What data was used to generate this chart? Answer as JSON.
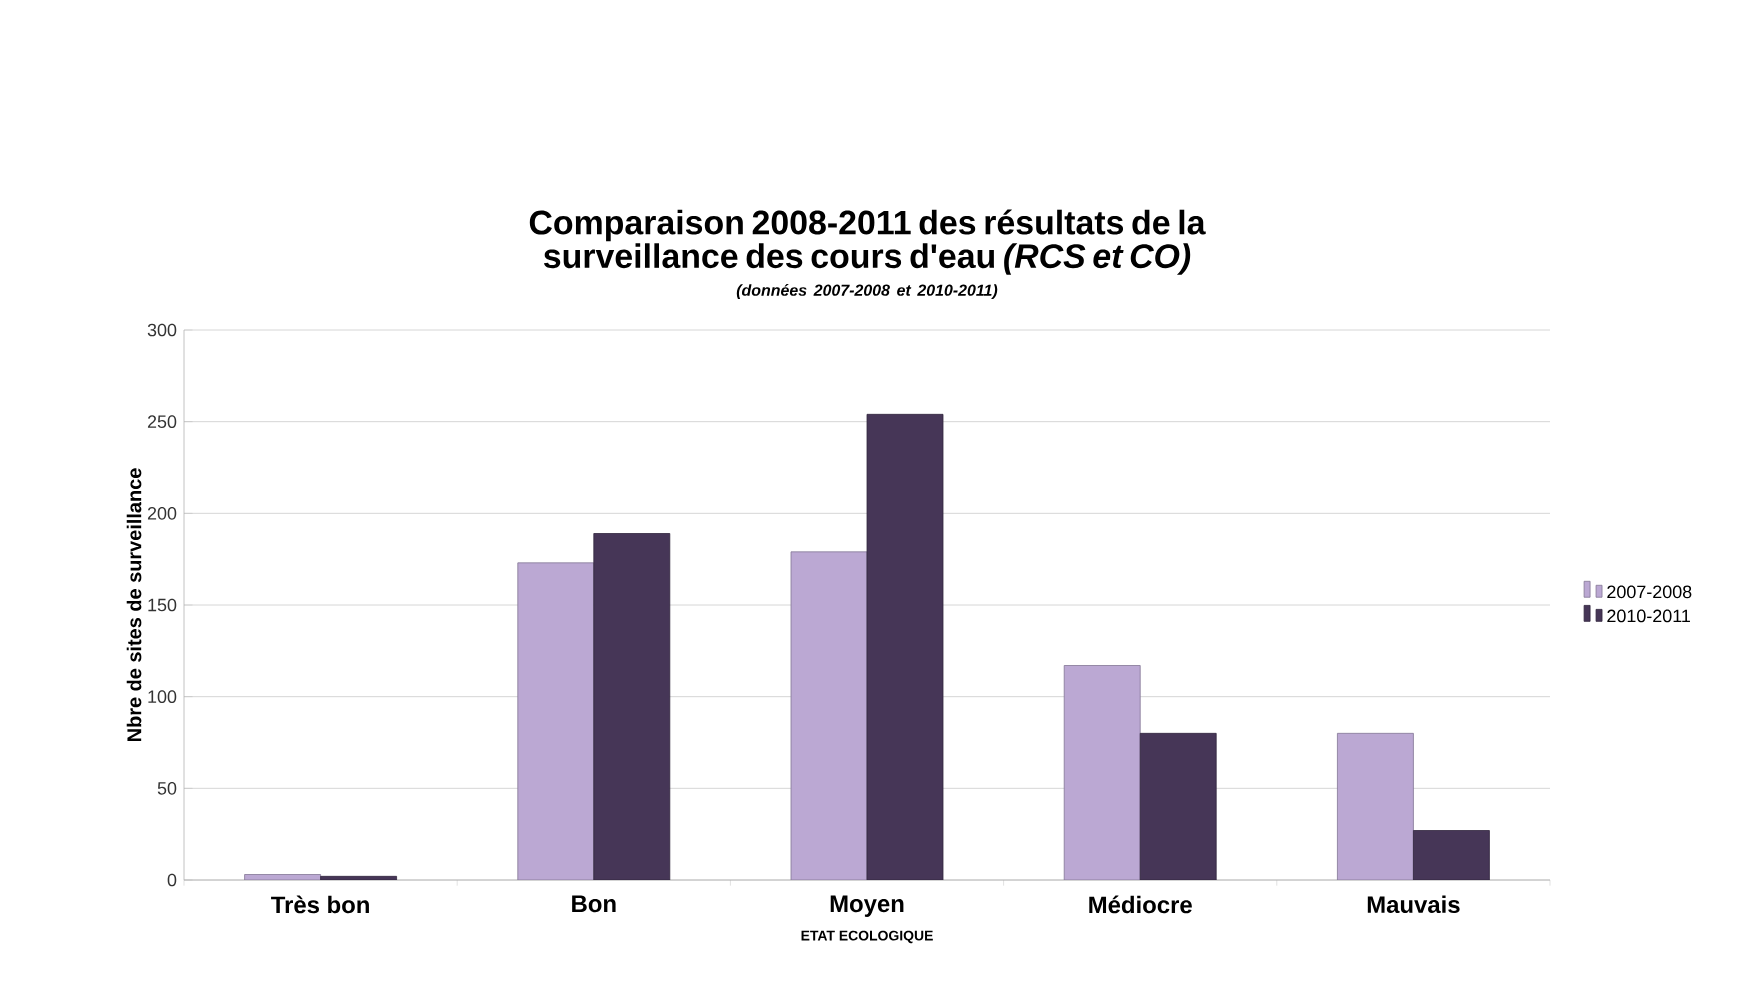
{
  "chart_data": {
    "type": "bar",
    "title": "Comparaison 2008-2011 des résultats de la surveillance  des cours d'eau *(RCS et CO)*",
    "subtitle": "(données 2007-2008 et 2010-2011)",
    "xlabel": "ETAT ECOLOGIQUE",
    "ylabel": "Nbre de sites de surveillance",
    "categories": [
      "Très bon",
      "Bon",
      "Moyen",
      "Médiocre",
      "Mauvais"
    ],
    "series": [
      {
        "name": "2007-2008",
        "color": "#bba8d3",
        "values": [
          3,
          173,
          179,
          117,
          80
        ]
      },
      {
        "name": "2010-2011",
        "color": "#463657",
        "values": [
          2,
          189,
          254,
          80,
          27
        ]
      }
    ],
    "ylim": [
      0,
      300
    ],
    "yticks": [
      0,
      50,
      100,
      150,
      200,
      250,
      300
    ],
    "grid": "y",
    "legend": "right"
  }
}
